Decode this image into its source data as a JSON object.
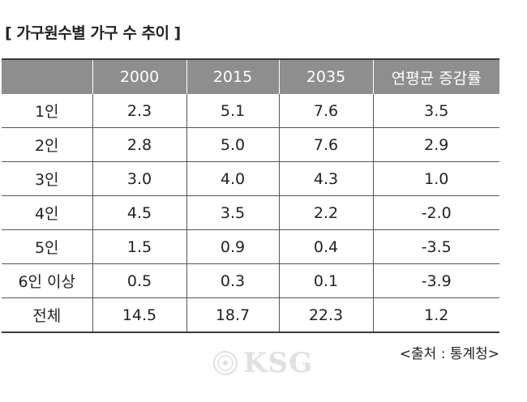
{
  "title": "[ 가구원수별 가구 수 추이 ]",
  "table": {
    "headers": [
      "",
      "2000",
      "2015",
      "2035",
      "연평균 증감률"
    ],
    "rows": [
      [
        "1인",
        "2.3",
        "5.1",
        "7.6",
        "3.5"
      ],
      [
        "2인",
        "2.8",
        "5.0",
        "7.6",
        "2.9"
      ],
      [
        "3인",
        "3.0",
        "4.0",
        "4.3",
        "1.0"
      ],
      [
        "4인",
        "4.5",
        "3.5",
        "2.2",
        "-2.0"
      ],
      [
        "5인",
        "1.5",
        "0.9",
        "0.4",
        "-3.5"
      ],
      [
        "6인 이상",
        "0.5",
        "0.3",
        "0.1",
        "-3.9"
      ],
      [
        "전체",
        "14.5",
        "18.7",
        "22.3",
        "1.2"
      ]
    ]
  },
  "source": "<출처 : 통계청>",
  "watermark": {
    "text": "KSG",
    "icon": "ksg-seal-icon"
  }
}
